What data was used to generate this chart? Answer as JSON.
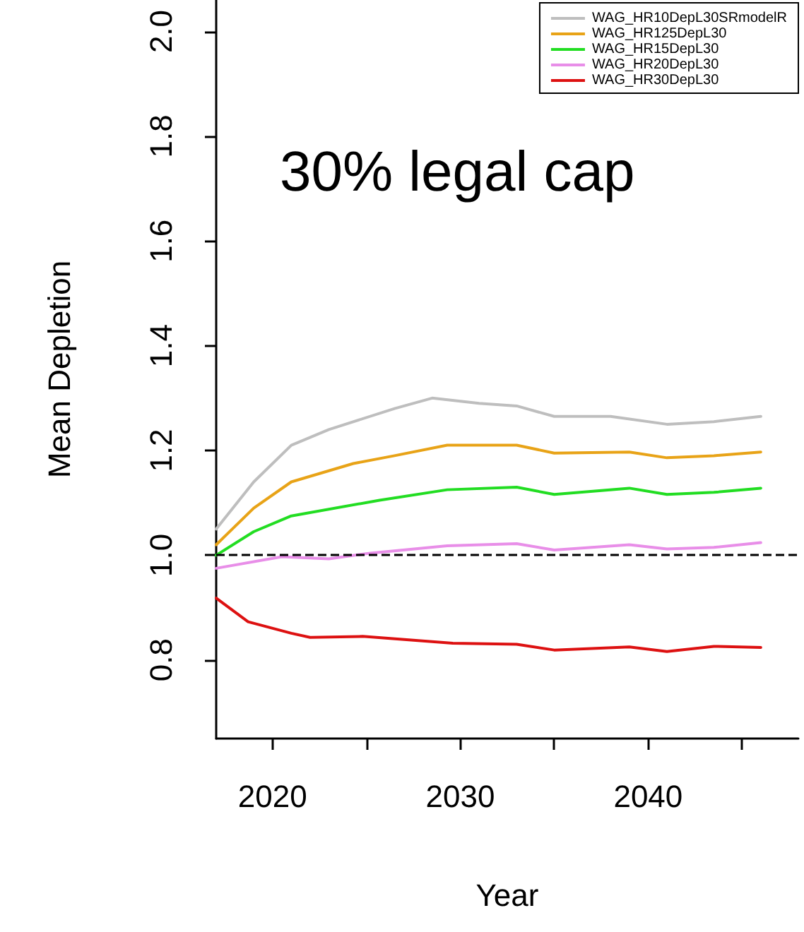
{
  "chart_data": {
    "type": "line",
    "xlabel": "Year",
    "ylabel": "Mean Depletion",
    "annotations": [
      "30% legal cap"
    ],
    "xlim": [
      2017,
      2048
    ],
    "xticks": [
      2020,
      {
        "value": 2025,
        "label": null
      },
      2030,
      {
        "value": 2035,
        "label": null
      },
      2040,
      {
        "value": 2045,
        "label": null
      }
    ],
    "ylim": [
      0.65,
      2.06
    ],
    "yticks": [
      {
        "value": 0.8,
        "label": "0.8"
      },
      {
        "value": 1.0,
        "label": "1.0"
      },
      {
        "value": 1.2,
        "label": "1.2"
      },
      {
        "value": 1.4,
        "label": "1.4"
      },
      {
        "value": 1.6,
        "label": "1.6"
      },
      {
        "value": 1.8,
        "label": "1.8"
      },
      {
        "value": 2.0,
        "label": "2.0"
      }
    ],
    "grid": false,
    "legend": "top right",
    "marker": "none",
    "line_style": "solid",
    "ref_lines": [
      {
        "axis": "y",
        "value": 1.0,
        "label": null,
        "color": "#000000",
        "line_style": "dashed"
      }
    ],
    "series": [
      {
        "name": "WAG_HR10DepL30SRmodelR",
        "color": "#bebebe",
        "x": [
          2017,
          2019,
          2021,
          2023,
          2026.5,
          2028.5,
          2031,
          2033,
          2035,
          2038,
          2041,
          2043.5,
          2046
        ],
        "values": [
          1.05,
          1.14,
          1.21,
          1.24,
          1.28,
          1.3,
          1.29,
          1.285,
          1.265,
          1.265,
          1.25,
          1.255,
          1.265
        ]
      },
      {
        "name": "WAG_HR125DepL30",
        "color": "#e8a317",
        "x": [
          2017,
          2019,
          2021,
          2024.3,
          2026.5,
          2029.3,
          2033,
          2035,
          2039,
          2041,
          2043.5,
          2046
        ],
        "values": [
          1.02,
          1.09,
          1.14,
          1.175,
          1.19,
          1.21,
          1.21,
          1.195,
          1.197,
          1.186,
          1.19,
          1.197
        ]
      },
      {
        "name": "WAG_HR15DepL30",
        "color": "#22dd22",
        "x": [
          2017,
          2019,
          2021,
          2025.7,
          2029.3,
          2033,
          2035,
          2039,
          2041,
          2043.5,
          2046
        ],
        "values": [
          1.0,
          1.045,
          1.075,
          1.105,
          1.125,
          1.13,
          1.116,
          1.128,
          1.116,
          1.12,
          1.128
        ]
      },
      {
        "name": "WAG_HR20DepL30",
        "color": "#e88ee8",
        "x": [
          2017,
          2020.5,
          2023,
          2025.2,
          2029.3,
          2033,
          2035,
          2039,
          2041,
          2043.5,
          2046
        ],
        "values": [
          0.975,
          0.997,
          0.993,
          1.004,
          1.018,
          1.022,
          1.01,
          1.02,
          1.012,
          1.015,
          1.024
        ]
      },
      {
        "name": "WAG_HR30DepL30",
        "color": "#dd1111",
        "x": [
          2017,
          2018.7,
          2021,
          2022,
          2024.8,
          2029.6,
          2033,
          2035,
          2039,
          2041,
          2043.5,
          2046
        ],
        "values": [
          0.918,
          0.873,
          0.851,
          0.843,
          0.845,
          0.832,
          0.83,
          0.819,
          0.825,
          0.816,
          0.826,
          0.824
        ]
      }
    ]
  }
}
